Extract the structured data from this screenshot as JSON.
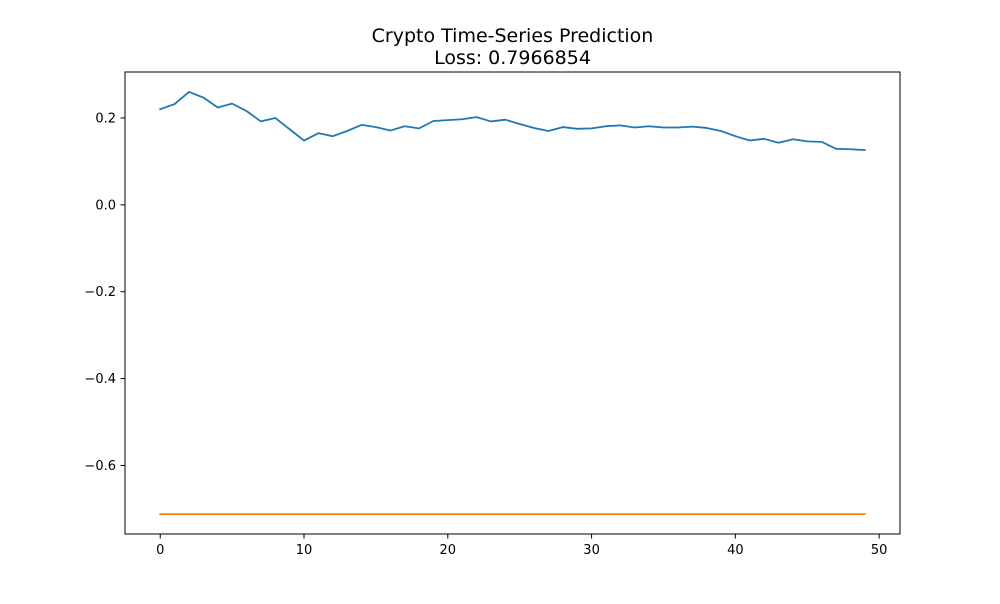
{
  "chart_data": {
    "type": "line",
    "title": "Crypto Time-Series Prediction",
    "subtitle": "Loss: 0.7966854",
    "xlabel": "",
    "ylabel": "",
    "xlim": [
      -2.45,
      51.45
    ],
    "ylim": [
      -0.7578,
      0.3058
    ],
    "xticks": [
      0,
      10,
      20,
      30,
      40,
      50
    ],
    "yticks": [
      0.2,
      0.0,
      -0.2,
      -0.4,
      -0.6
    ],
    "xtick_labels": [
      "0",
      "10",
      "20",
      "30",
      "40",
      "50"
    ],
    "ytick_labels": [
      "0.2",
      "0.0",
      "−0.2",
      "−0.4",
      "−0.6"
    ],
    "grid": false,
    "legend": false,
    "series": [
      {
        "color": "#1f77b4",
        "x": [
          0,
          1,
          2,
          3,
          4,
          5,
          6,
          7,
          8,
          9,
          10,
          11,
          12,
          13,
          14,
          15,
          16,
          17,
          18,
          19,
          20,
          21,
          22,
          23,
          24,
          25,
          26,
          27,
          28,
          29,
          30,
          31,
          32,
          33,
          34,
          35,
          36,
          37,
          38,
          39,
          40,
          41,
          42,
          43,
          44,
          45,
          46,
          47,
          48,
          49
        ],
        "values": [
          0.22,
          0.232,
          0.26,
          0.247,
          0.224,
          0.233,
          0.216,
          0.192,
          0.2,
          0.174,
          0.148,
          0.165,
          0.158,
          0.17,
          0.184,
          0.179,
          0.171,
          0.181,
          0.176,
          0.193,
          0.195,
          0.197,
          0.202,
          0.192,
          0.196,
          0.186,
          0.177,
          0.17,
          0.179,
          0.175,
          0.176,
          0.181,
          0.183,
          0.178,
          0.181,
          0.178,
          0.178,
          0.18,
          0.177,
          0.17,
          0.158,
          0.148,
          0.152,
          0.143,
          0.151,
          0.146,
          0.145,
          0.129,
          0.128,
          0.126
        ]
      },
      {
        "color": "#ff7f0e",
        "x": [
          0,
          1,
          2,
          3,
          4,
          5,
          6,
          7,
          8,
          9,
          10,
          11,
          12,
          13,
          14,
          15,
          16,
          17,
          18,
          19,
          20,
          21,
          22,
          23,
          24,
          25,
          26,
          27,
          28,
          29,
          30,
          31,
          32,
          33,
          34,
          35,
          36,
          37,
          38,
          39,
          40,
          41,
          42,
          43,
          44,
          45,
          46,
          47,
          48,
          49
        ],
        "values": [
          -0.712,
          -0.712,
          -0.712,
          -0.712,
          -0.712,
          -0.712,
          -0.712,
          -0.712,
          -0.712,
          -0.712,
          -0.712,
          -0.712,
          -0.712,
          -0.712,
          -0.712,
          -0.712,
          -0.712,
          -0.712,
          -0.712,
          -0.712,
          -0.712,
          -0.712,
          -0.712,
          -0.712,
          -0.712,
          -0.712,
          -0.712,
          -0.712,
          -0.712,
          -0.712,
          -0.712,
          -0.712,
          -0.712,
          -0.712,
          -0.712,
          -0.712,
          -0.712,
          -0.712,
          -0.712,
          -0.712,
          -0.712,
          -0.712,
          -0.712,
          -0.712,
          -0.712,
          -0.712,
          -0.712,
          -0.712,
          -0.712,
          -0.712
        ]
      }
    ]
  }
}
